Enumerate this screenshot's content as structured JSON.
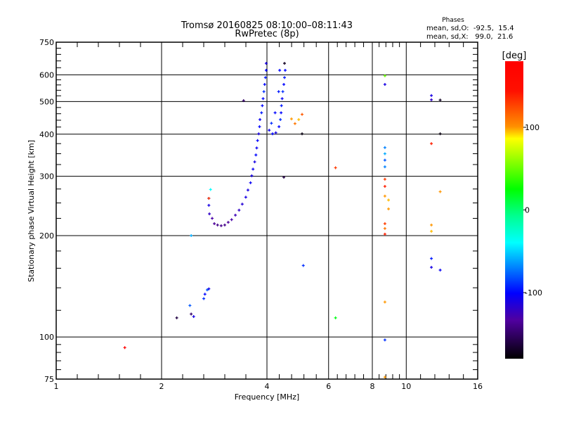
{
  "chart_data": {
    "type": "scatter",
    "title": "Tromsø 20160825 08:10:00–08:11:43",
    "subtitle": "RwPretec (8p)",
    "xlabel": "Frequency [MHz]",
    "ylabel": "Stationary phase Virtual Height [km]",
    "xscale": "log",
    "yscale": "log",
    "xlim": [
      1,
      16
    ],
    "ylim": [
      75,
      750
    ],
    "xticks": [
      1,
      2,
      4,
      6,
      8,
      10,
      16
    ],
    "xtick_labels": [
      "1",
      "2",
      "4",
      "6",
      "8",
      "10",
      "16"
    ],
    "yticks": [
      75,
      100,
      200,
      300,
      400,
      500,
      600,
      750
    ],
    "ytick_labels": [
      "75",
      "100",
      "200",
      "300",
      "400",
      "500",
      "600",
      "750"
    ],
    "xgrid": [
      2,
      4,
      6,
      8,
      10
    ],
    "ygrid": [
      100,
      200,
      300,
      400,
      500,
      600
    ],
    "stats": {
      "heading": "Phases",
      "o_line": "mean, sd,O:  -92.5,  15.4",
      "x_line": "mean, sd,X:   99.0,  21.6"
    },
    "colorbar": {
      "label": "[deg]",
      "range": [
        -180,
        180
      ],
      "ticks": [
        100,
        0,
        -100
      ],
      "tick_labels": [
        "100",
        "0",
        "-100"
      ]
    },
    "series": [
      {
        "name": "echoes",
        "columns": [
          "freq_MHz",
          "height_km",
          "phase_deg"
        ],
        "points": [
          [
            2.83,
            217,
            -135
          ],
          [
            2.89,
            215,
            -140
          ],
          [
            2.96,
            214,
            -138
          ],
          [
            3.03,
            215,
            -140
          ],
          [
            3.1,
            219,
            -135
          ],
          [
            3.17,
            223,
            -130
          ],
          [
            3.25,
            230,
            -125
          ],
          [
            3.33,
            238,
            -120
          ],
          [
            3.4,
            248,
            -115
          ],
          [
            3.48,
            260,
            -110
          ],
          [
            3.53,
            273,
            -110
          ],
          [
            3.59,
            287,
            -105
          ],
          [
            3.62,
            301,
            -110
          ],
          [
            3.65,
            315,
            -105
          ],
          [
            3.69,
            331,
            -110
          ],
          [
            3.72,
            347,
            -100
          ],
          [
            3.74,
            364,
            -105
          ],
          [
            3.76,
            383,
            -100
          ],
          [
            3.79,
            401,
            -110
          ],
          [
            3.81,
            421,
            -100
          ],
          [
            3.82,
            442,
            -105
          ],
          [
            3.86,
            463,
            -95
          ],
          [
            3.88,
            486,
            -100
          ],
          [
            3.9,
            510,
            -100
          ],
          [
            3.92,
            535,
            -90
          ],
          [
            3.94,
            562,
            -100
          ],
          [
            3.96,
            589,
            -95
          ],
          [
            3.98,
            619,
            -100
          ],
          [
            3.98,
            649,
            -110
          ],
          [
            2.79,
            225,
            -130
          ],
          [
            2.74,
            232,
            -120
          ],
          [
            2.73,
            246,
            -110
          ],
          [
            2.73,
            258,
            -105
          ],
          [
            4.06,
            411,
            -105
          ],
          [
            4.15,
            401,
            -100
          ],
          [
            4.24,
            404,
            -110
          ],
          [
            4.33,
            421,
            -100
          ],
          [
            4.37,
            442,
            -90
          ],
          [
            4.39,
            463,
            -100
          ],
          [
            4.4,
            486,
            -95
          ],
          [
            4.42,
            510,
            -105
          ],
          [
            4.44,
            535,
            -90
          ],
          [
            4.47,
            562,
            -100
          ],
          [
            4.49,
            589,
            -95
          ],
          [
            4.51,
            619,
            -100
          ],
          [
            4.49,
            649,
            -170
          ],
          [
            4.35,
            619,
            -100
          ],
          [
            4.32,
            535,
            -95
          ],
          [
            4.22,
            463,
            -100
          ],
          [
            4.12,
            431,
            -90
          ],
          [
            4.7,
            444,
            100
          ],
          [
            4.81,
            430,
            110
          ],
          [
            4.93,
            442,
            95
          ],
          [
            5.04,
            458,
            120
          ],
          [
            2.21,
            114,
            -160
          ],
          [
            2.41,
            124,
            -80
          ],
          [
            2.43,
            117,
            -150
          ],
          [
            2.47,
            115,
            -110
          ],
          [
            2.64,
            130,
            -90
          ],
          [
            2.66,
            134,
            -100
          ],
          [
            2.7,
            138,
            -80
          ],
          [
            2.73,
            139,
            -110
          ],
          [
            2.43,
            200,
            -60
          ],
          [
            2.73,
            258,
            130
          ],
          [
            2.76,
            274,
            -40
          ],
          [
            1.57,
            93,
            175
          ],
          [
            3.43,
            503,
            -150
          ],
          [
            4.47,
            298,
            -160
          ],
          [
            5.04,
            401,
            -175
          ],
          [
            5.08,
            163,
            -90
          ],
          [
            6.28,
            114,
            20
          ],
          [
            6.28,
            318,
            130
          ],
          [
            8.69,
            596,
            50
          ],
          [
            8.69,
            562,
            -110
          ],
          [
            8.69,
            365,
            -70
          ],
          [
            8.69,
            350,
            -60
          ],
          [
            8.69,
            335,
            -80
          ],
          [
            8.69,
            320,
            -70
          ],
          [
            8.69,
            294,
            130
          ],
          [
            8.69,
            280,
            140
          ],
          [
            8.69,
            262,
            100
          ],
          [
            8.69,
            217,
            130
          ],
          [
            8.69,
            210,
            110
          ],
          [
            8.69,
            202,
            140
          ],
          [
            8.69,
            127,
            100
          ],
          [
            8.69,
            98,
            -90
          ],
          [
            8.69,
            76,
            100
          ],
          [
            8.9,
            255,
            95
          ],
          [
            8.9,
            240,
            100
          ],
          [
            11.8,
            521,
            -110
          ],
          [
            11.8,
            506,
            -120
          ],
          [
            11.8,
            375,
            140
          ],
          [
            11.8,
            215,
            100
          ],
          [
            11.8,
            206,
            95
          ],
          [
            11.8,
            171,
            -95
          ],
          [
            11.8,
            161,
            -110
          ],
          [
            12.5,
            505,
            -170
          ],
          [
            12.5,
            401,
            -175
          ],
          [
            12.5,
            270,
            100
          ],
          [
            12.5,
            158,
            -105
          ]
        ]
      }
    ]
  }
}
